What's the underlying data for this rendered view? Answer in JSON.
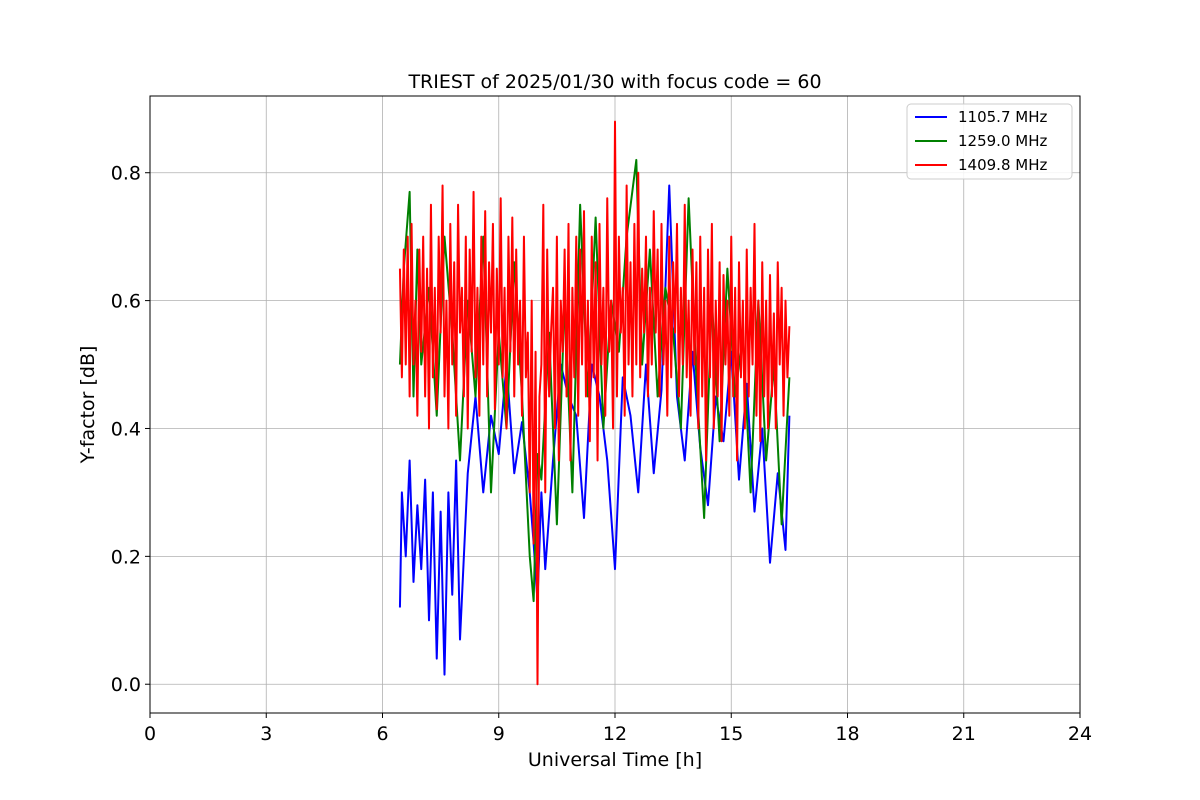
{
  "chart_data": {
    "type": "line",
    "title": "TRIEST of 2025/01/30 with focus code = 60",
    "xlabel": "Universal Time [h]",
    "ylabel": "Y-factor [dB]",
    "xlim": [
      0,
      24
    ],
    "ylim": [
      -0.045,
      0.92
    ],
    "xticks": [
      0,
      3,
      6,
      9,
      12,
      15,
      18,
      21,
      24
    ],
    "yticks": [
      0.0,
      0.2,
      0.4,
      0.6,
      0.8
    ],
    "xtick_labels": [
      "0",
      "3",
      "6",
      "9",
      "12",
      "15",
      "18",
      "21",
      "24"
    ],
    "ytick_labels": [
      "0.0",
      "0.2",
      "0.4",
      "0.6",
      "0.8"
    ],
    "grid": true,
    "legend_position": "top-right",
    "series": [
      {
        "name": "1105.7 MHz",
        "color": "#0000ff",
        "x": [
          6.45,
          6.5,
          6.6,
          6.7,
          6.8,
          6.9,
          7.0,
          7.1,
          7.2,
          7.3,
          7.4,
          7.5,
          7.6,
          7.7,
          7.8,
          7.9,
          8.0,
          8.2,
          8.4,
          8.6,
          8.8,
          9.0,
          9.2,
          9.4,
          9.6,
          9.8,
          9.9,
          10.0,
          10.1,
          10.2,
          10.4,
          10.6,
          10.8,
          11.0,
          11.2,
          11.4,
          11.6,
          11.8,
          12.0,
          12.2,
          12.4,
          12.6,
          12.8,
          13.0,
          13.2,
          13.4,
          13.6,
          13.8,
          14.0,
          14.2,
          14.4,
          14.6,
          14.8,
          15.0,
          15.2,
          15.4,
          15.6,
          15.8,
          16.0,
          16.2,
          16.4,
          16.5
        ],
        "y": [
          0.12,
          0.3,
          0.2,
          0.35,
          0.16,
          0.28,
          0.18,
          0.32,
          0.1,
          0.3,
          0.04,
          0.27,
          0.015,
          0.3,
          0.14,
          0.35,
          0.07,
          0.33,
          0.45,
          0.3,
          0.42,
          0.36,
          0.5,
          0.33,
          0.41,
          0.3,
          0.22,
          0.13,
          0.3,
          0.18,
          0.35,
          0.5,
          0.45,
          0.42,
          0.26,
          0.5,
          0.45,
          0.35,
          0.18,
          0.48,
          0.42,
          0.3,
          0.5,
          0.33,
          0.46,
          0.78,
          0.45,
          0.35,
          0.52,
          0.37,
          0.28,
          0.45,
          0.38,
          0.52,
          0.32,
          0.47,
          0.27,
          0.4,
          0.19,
          0.33,
          0.21,
          0.42
        ]
      },
      {
        "name": "1259.0 MHz",
        "color": "#008000",
        "x": [
          6.45,
          6.55,
          6.7,
          6.8,
          6.9,
          7.0,
          7.2,
          7.4,
          7.6,
          7.8,
          8.0,
          8.2,
          8.4,
          8.6,
          8.8,
          9.0,
          9.2,
          9.4,
          9.6,
          9.8,
          9.9,
          10.0,
          10.1,
          10.3,
          10.5,
          10.7,
          10.9,
          11.1,
          11.3,
          11.5,
          11.7,
          11.9,
          12.1,
          12.3,
          12.55,
          12.7,
          12.9,
          13.1,
          13.3,
          13.5,
          13.7,
          13.9,
          14.1,
          14.3,
          14.5,
          14.7,
          14.9,
          15.1,
          15.3,
          15.5,
          15.7,
          15.9,
          16.1,
          16.3,
          16.5
        ],
        "y": [
          0.5,
          0.65,
          0.77,
          0.45,
          0.68,
          0.5,
          0.62,
          0.42,
          0.7,
          0.55,
          0.35,
          0.6,
          0.45,
          0.7,
          0.3,
          0.55,
          0.4,
          0.66,
          0.45,
          0.2,
          0.13,
          0.36,
          0.32,
          0.55,
          0.25,
          0.6,
          0.3,
          0.75,
          0.45,
          0.73,
          0.4,
          0.6,
          0.52,
          0.7,
          0.82,
          0.5,
          0.68,
          0.45,
          0.62,
          0.55,
          0.4,
          0.76,
          0.48,
          0.26,
          0.6,
          0.38,
          0.65,
          0.45,
          0.55,
          0.3,
          0.6,
          0.35,
          0.5,
          0.25,
          0.48
        ]
      },
      {
        "name": "1409.8 MHz",
        "color": "#ff0000",
        "x": [
          6.45,
          6.5,
          6.55,
          6.6,
          6.65,
          6.7,
          6.75,
          6.8,
          6.85,
          6.9,
          6.95,
          7.0,
          7.05,
          7.1,
          7.15,
          7.2,
          7.25,
          7.3,
          7.35,
          7.4,
          7.45,
          7.5,
          7.55,
          7.6,
          7.65,
          7.7,
          7.75,
          7.8,
          7.85,
          7.9,
          7.95,
          8.0,
          8.05,
          8.1,
          8.15,
          8.2,
          8.25,
          8.3,
          8.35,
          8.4,
          8.45,
          8.5,
          8.55,
          8.6,
          8.65,
          8.7,
          8.75,
          8.8,
          8.85,
          8.9,
          8.95,
          9.0,
          9.05,
          9.1,
          9.15,
          9.2,
          9.25,
          9.3,
          9.35,
          9.4,
          9.45,
          9.5,
          9.55,
          9.6,
          9.65,
          9.7,
          9.75,
          9.8,
          9.85,
          9.9,
          9.95,
          10.0,
          10.05,
          10.1,
          10.15,
          10.2,
          10.25,
          10.3,
          10.35,
          10.4,
          10.45,
          10.5,
          10.55,
          10.6,
          10.65,
          10.7,
          10.75,
          10.8,
          10.85,
          10.9,
          10.95,
          11.0,
          11.05,
          11.1,
          11.15,
          11.2,
          11.25,
          11.3,
          11.35,
          11.4,
          11.45,
          11.5,
          11.55,
          11.6,
          11.65,
          11.7,
          11.75,
          11.8,
          11.85,
          11.9,
          11.95,
          12.0,
          12.05,
          12.1,
          12.15,
          12.2,
          12.25,
          12.3,
          12.35,
          12.4,
          12.45,
          12.5,
          12.55,
          12.6,
          12.65,
          12.7,
          12.75,
          12.8,
          12.85,
          12.9,
          12.95,
          13.0,
          13.05,
          13.1,
          13.15,
          13.2,
          13.25,
          13.3,
          13.35,
          13.4,
          13.45,
          13.5,
          13.55,
          13.6,
          13.65,
          13.7,
          13.75,
          13.8,
          13.85,
          13.9,
          13.95,
          14.0,
          14.05,
          14.1,
          14.15,
          14.2,
          14.25,
          14.3,
          14.35,
          14.4,
          14.45,
          14.5,
          14.55,
          14.6,
          14.65,
          14.7,
          14.75,
          14.8,
          14.85,
          14.9,
          14.95,
          15.0,
          15.05,
          15.1,
          15.15,
          15.2,
          15.25,
          15.3,
          15.35,
          15.4,
          15.45,
          15.5,
          15.55,
          15.6,
          15.65,
          15.7,
          15.75,
          15.8,
          15.85,
          15.9,
          15.95,
          16.0,
          16.05,
          16.1,
          16.15,
          16.2,
          16.25,
          16.3,
          16.35,
          16.4,
          16.45,
          16.5
        ],
        "y": [
          0.65,
          0.48,
          0.68,
          0.5,
          0.7,
          0.45,
          0.72,
          0.5,
          0.6,
          0.42,
          0.68,
          0.52,
          0.7,
          0.45,
          0.65,
          0.4,
          0.75,
          0.48,
          0.62,
          0.43,
          0.7,
          0.55,
          0.78,
          0.45,
          0.6,
          0.4,
          0.72,
          0.5,
          0.66,
          0.42,
          0.75,
          0.55,
          0.62,
          0.45,
          0.7,
          0.4,
          0.68,
          0.52,
          0.77,
          0.48,
          0.62,
          0.42,
          0.7,
          0.5,
          0.74,
          0.45,
          0.66,
          0.55,
          0.72,
          0.43,
          0.65,
          0.5,
          0.76,
          0.48,
          0.62,
          0.4,
          0.7,
          0.52,
          0.73,
          0.45,
          0.68,
          0.5,
          0.6,
          0.42,
          0.7,
          0.48,
          0.55,
          0.3,
          0.6,
          0.22,
          0.52,
          0.0,
          0.45,
          0.5,
          0.75,
          0.3,
          0.68,
          0.45,
          0.55,
          0.62,
          0.4,
          0.7,
          0.35,
          0.6,
          0.52,
          0.68,
          0.45,
          0.72,
          0.35,
          0.62,
          0.48,
          0.7,
          0.42,
          0.68,
          0.5,
          0.74,
          0.45,
          0.6,
          0.38,
          0.7,
          0.48,
          0.66,
          0.35,
          0.72,
          0.5,
          0.62,
          0.42,
          0.76,
          0.52,
          0.6,
          0.4,
          0.88,
          0.45,
          0.7,
          0.55,
          0.62,
          0.42,
          0.78,
          0.5,
          0.66,
          0.45,
          0.72,
          0.5,
          0.8,
          0.48,
          0.65,
          0.55,
          0.7,
          0.45,
          0.62,
          0.5,
          0.74,
          0.55,
          0.68,
          0.45,
          0.72,
          0.5,
          0.6,
          0.42,
          0.7,
          0.48,
          0.66,
          0.55,
          0.72,
          0.45,
          0.62,
          0.5,
          0.75,
          0.48,
          0.6,
          0.42,
          0.68,
          0.5,
          0.66,
          0.4,
          0.7,
          0.45,
          0.62,
          0.35,
          0.68,
          0.48,
          0.72,
          0.4,
          0.6,
          0.45,
          0.66,
          0.38,
          0.64,
          0.5,
          0.6,
          0.42,
          0.7,
          0.45,
          0.62,
          0.35,
          0.66,
          0.48,
          0.6,
          0.4,
          0.68,
          0.45,
          0.62,
          0.5,
          0.72,
          0.42,
          0.6,
          0.38,
          0.66,
          0.45,
          0.6,
          0.4,
          0.64,
          0.45,
          0.58,
          0.4,
          0.66,
          0.5,
          0.62,
          0.42,
          0.6,
          0.48,
          0.56
        ]
      }
    ]
  }
}
